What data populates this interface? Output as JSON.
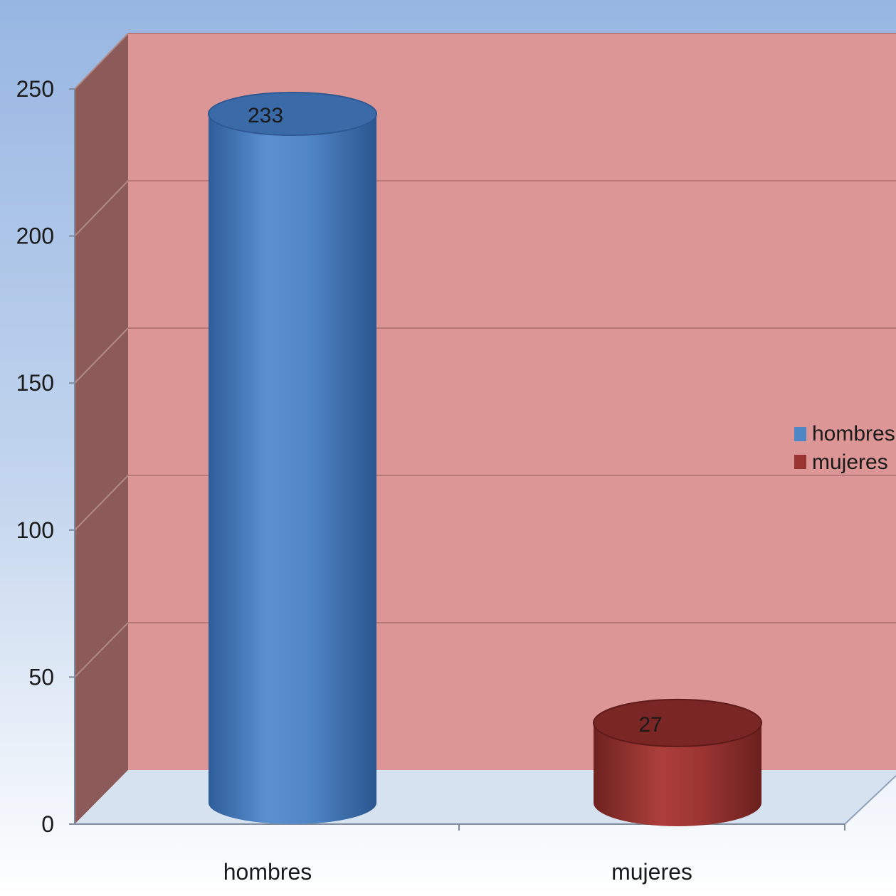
{
  "chart_data": {
    "type": "bar",
    "style": "3d-cylinder",
    "categories": [
      "hombres",
      "mujeres"
    ],
    "series": [
      {
        "name": "hombres",
        "values": [
          233,
          null
        ],
        "color": "#4f86c6"
      },
      {
        "name": "mujeres",
        "values": [
          null,
          27
        ],
        "color": "#9b3532"
      }
    ],
    "data_labels": [
      "233",
      "27"
    ],
    "y_ticks": [
      "0",
      "50",
      "100",
      "150",
      "200",
      "250"
    ],
    "ylim": [
      0,
      250
    ],
    "grid": true,
    "legend_position": "right",
    "colors": {
      "background_top": "#97b6e2",
      "background_bottom": "#ffffff",
      "back_wall": "#dc9696",
      "side_wall": "#8c5b59",
      "floor": "#d7e2f1",
      "gridline": "#b97878"
    }
  }
}
